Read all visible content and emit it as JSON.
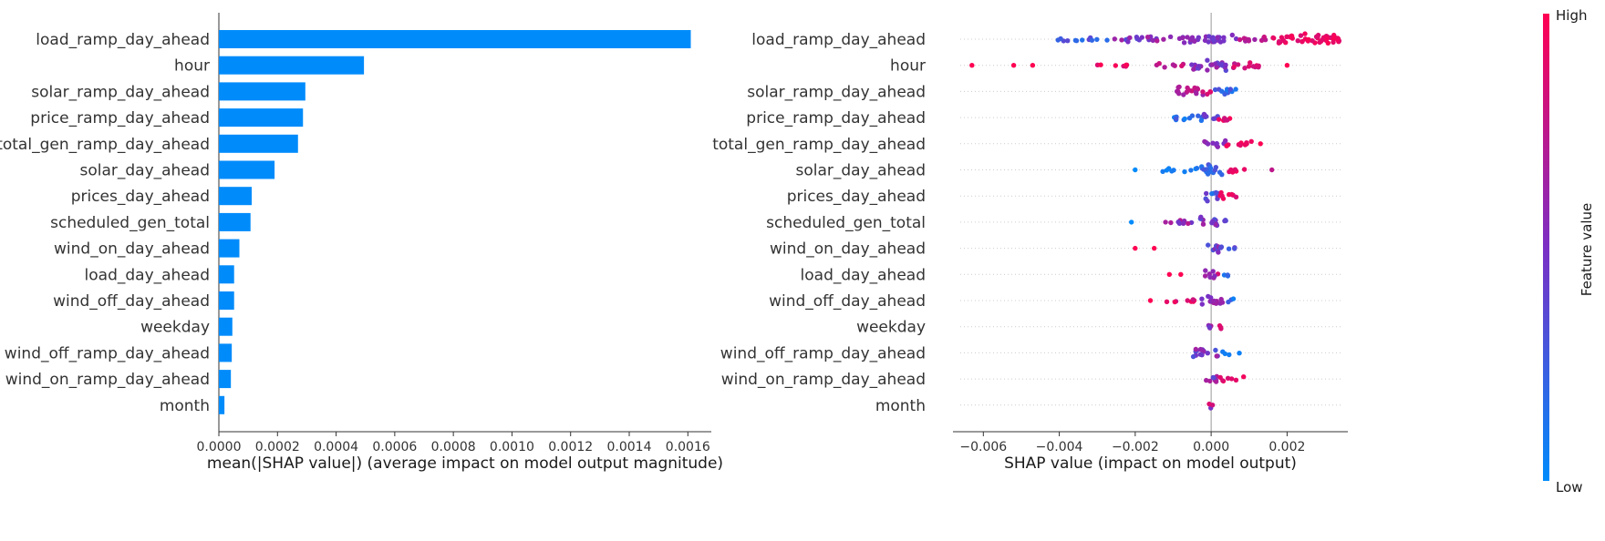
{
  "colors": {
    "bar": "#008bfb",
    "low": "#008bfb",
    "high": "#ff0052",
    "mid": "#7b2fc4",
    "axis": "#333333",
    "grid": "#cccccc"
  },
  "chart_data": [
    {
      "type": "bar",
      "features": [
        "load_ramp_day_ahead",
        "hour",
        "solar_ramp_day_ahead",
        "price_ramp_day_ahead",
        "total_gen_ramp_day_ahead",
        "solar_day_ahead",
        "prices_day_ahead",
        "scheduled_gen_total",
        "wind_on_day_ahead",
        "load_day_ahead",
        "wind_off_day_ahead",
        "weekday",
        "wind_off_ramp_day_ahead",
        "wind_on_ramp_day_ahead",
        "month"
      ],
      "values": [
        0.00161,
        0.000495,
        0.000295,
        0.000287,
        0.00027,
        0.00019,
        0.000112,
        0.000108,
        7e-05,
        5.2e-05,
        5.2e-05,
        4.6e-05,
        4.4e-05,
        4.1e-05,
        1.9e-05
      ],
      "xlim": [
        0,
        0.00168
      ],
      "xticks": [
        "0.0000",
        "0.0002",
        "0.0004",
        "0.0006",
        "0.0008",
        "0.0010",
        "0.0012",
        "0.0014",
        "0.0016"
      ],
      "xtick_values": [
        0,
        0.0002,
        0.0004,
        0.0006,
        0.0008,
        0.001,
        0.0012,
        0.0014,
        0.0016
      ],
      "xlabel": "mean(|SHAP value|) (average impact on model output magnitude)"
    },
    {
      "type": "scatter",
      "subtype": "beeswarm",
      "features": [
        "load_ramp_day_ahead",
        "hour",
        "solar_ramp_day_ahead",
        "price_ramp_day_ahead",
        "total_gen_ramp_day_ahead",
        "solar_day_ahead",
        "prices_day_ahead",
        "scheduled_gen_total",
        "wind_on_day_ahead",
        "load_day_ahead",
        "wind_off_day_ahead",
        "weekday",
        "wind_off_ramp_day_ahead",
        "wind_on_ramp_day_ahead",
        "month"
      ],
      "xlim": [
        -0.0068,
        0.0036
      ],
      "xticks": [
        "−0.006",
        "−0.004",
        "−0.002",
        "0.000",
        "0.002"
      ],
      "xtick_values": [
        -0.006,
        -0.004,
        -0.002,
        0,
        0.002
      ],
      "xlabel": "SHAP value (impact on model output)",
      "distributions": [
        {
          "segments": [
            [
              -0.0042,
              -0.0027,
              0.1,
              0.4,
              0.12
            ],
            [
              -0.0027,
              -0.0009,
              0.3,
              0.7,
              0.15
            ],
            [
              -0.0009,
              0.0007,
              0.4,
              0.6,
              0.3
            ],
            [
              0.0007,
              0.0016,
              0.6,
              0.8,
              0.18
            ],
            [
              0.0016,
              0.0034,
              0.85,
              1.0,
              0.4
            ]
          ],
          "outliers": []
        },
        {
          "segments": [
            [
              -0.003,
              -0.0017,
              0.85,
              1.0,
              0.08
            ],
            [
              -0.0015,
              -0.0006,
              0.6,
              0.9,
              0.12
            ],
            [
              -0.0006,
              0.0004,
              0.35,
              0.65,
              0.38
            ],
            [
              0.0004,
              0.0013,
              0.7,
              1.0,
              0.2
            ]
          ],
          "outliers": [
            [
              -0.0063,
              1.0
            ],
            [
              -0.0052,
              1.0
            ],
            [
              -0.0047,
              1.0
            ],
            [
              0.002,
              1.0
            ]
          ]
        },
        {
          "segments": [
            [
              -0.0009,
              0.0001,
              0.6,
              0.9,
              0.3
            ],
            [
              0.0001,
              0.0007,
              0.1,
              0.4,
              0.25
            ]
          ],
          "outliers": []
        },
        {
          "segments": [
            [
              -0.0011,
              -0.0002,
              0.05,
              0.3,
              0.22
            ],
            [
              -0.0002,
              0.0002,
              0.3,
              0.5,
              0.3
            ],
            [
              0.0002,
              0.0005,
              0.8,
              1.0,
              0.3
            ]
          ],
          "outliers": []
        },
        {
          "segments": [
            [
              -0.0002,
              0.0004,
              0.4,
              0.6,
              0.25
            ],
            [
              0.0004,
              0.0012,
              0.85,
              1.0,
              0.18
            ]
          ],
          "outliers": [
            [
              0.0013,
              1.0
            ]
          ]
        },
        {
          "segments": [
            [
              -0.0014,
              -0.0003,
              0.0,
              0.15,
              0.12
            ],
            [
              -0.0003,
              0.0003,
              0.1,
              0.35,
              0.38
            ],
            [
              0.0003,
              0.0009,
              0.85,
              1.0,
              0.15
            ]
          ],
          "outliers": [
            [
              -0.002,
              0.0
            ],
            [
              0.0016,
              0.75
            ]
          ]
        },
        {
          "segments": [
            [
              -0.0002,
              0.0002,
              0.1,
              0.5,
              0.35
            ],
            [
              0.0002,
              0.0007,
              0.85,
              1.0,
              0.25
            ]
          ],
          "outliers": []
        },
        {
          "segments": [
            [
              -0.0014,
              -0.0003,
              0.45,
              0.75,
              0.12
            ],
            [
              -0.0003,
              0.0002,
              0.3,
              0.7,
              0.35
            ],
            [
              0.0002,
              0.0006,
              0.3,
              0.5,
              0.12
            ]
          ],
          "outliers": [
            [
              -0.0021,
              0.0
            ]
          ]
        },
        {
          "segments": [
            [
              -0.0002,
              0.0002,
              0.3,
              0.6,
              0.3
            ],
            [
              0.0002,
              0.0008,
              0.2,
              0.45,
              0.12
            ]
          ],
          "outliers": [
            [
              -0.002,
              1.0
            ],
            [
              -0.0015,
              1.0
            ]
          ]
        },
        {
          "segments": [
            [
              -0.0002,
              0.0002,
              0.5,
              0.9,
              0.3
            ],
            [
              0.0002,
              0.0005,
              0.05,
              0.3,
              0.12
            ]
          ],
          "outliers": [
            [
              -0.0011,
              1.0
            ],
            [
              -0.0008,
              1.0
            ]
          ]
        },
        {
          "segments": [
            [
              -0.0013,
              -0.0003,
              0.75,
              1.0,
              0.12
            ],
            [
              -0.0003,
              0.0003,
              0.4,
              0.7,
              0.32
            ],
            [
              0.0003,
              0.0007,
              0.05,
              0.3,
              0.12
            ]
          ],
          "outliers": [
            [
              -0.0016,
              1.0
            ]
          ]
        },
        {
          "segments": [
            [
              -0.0001,
              0.0001,
              0.3,
              0.7,
              0.3
            ],
            [
              0.0001,
              0.0003,
              0.85,
              1.0,
              0.15
            ]
          ],
          "outliers": []
        },
        {
          "segments": [
            [
              -0.0005,
              0.0002,
              0.3,
              0.7,
              0.35
            ],
            [
              0.0002,
              0.0008,
              0.05,
              0.3,
              0.1
            ]
          ],
          "outliers": []
        },
        {
          "segments": [
            [
              -0.0002,
              0.0002,
              0.3,
              0.7,
              0.35
            ],
            [
              0.0002,
              0.0009,
              0.85,
              1.0,
              0.14
            ]
          ],
          "outliers": []
        },
        {
          "segments": [
            [
              -8e-05,
              8e-05,
              0.4,
              0.9,
              0.3
            ]
          ],
          "outliers": []
        }
      ]
    }
  ],
  "colorbar": {
    "high_label": "High",
    "low_label": "Low",
    "title": "Feature value"
  }
}
